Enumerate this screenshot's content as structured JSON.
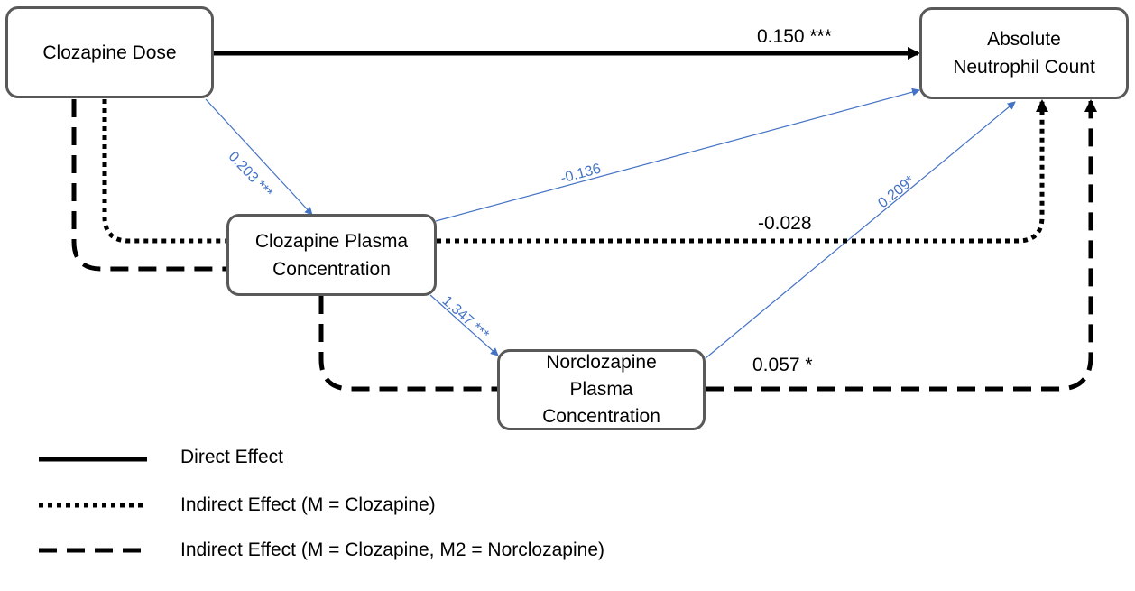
{
  "nodes": {
    "dose": "Clozapine Dose",
    "anc_line1": "Absolute",
    "anc_line2": "Neutrophil Count",
    "cpc_line1": "Clozapine Plasma",
    "cpc_line2": "Concentration",
    "npc_line1": "Norclozapine",
    "npc_line2": "Plasma",
    "npc_line3": "Concentration"
  },
  "edges": {
    "direct": "0.150 ***",
    "dose_to_cpc": "0.203 ***",
    "cpc_to_anc": "-0.136",
    "npc_to_anc": "0.209*",
    "cpc_to_npc": "1.347 ***",
    "indirect_clozapine": "-0.028",
    "indirect_norclozapine": "0.057 *"
  },
  "legend": {
    "direct": "Direct Effect",
    "indirect_m": "Indirect Effect (M = Clozapine)",
    "indirect_m2": "Indirect Effect (M = Clozapine, M2 = Norclozapine)"
  },
  "colors": {
    "blue": "#4472c4",
    "border": "#595959",
    "line": "#000000"
  }
}
